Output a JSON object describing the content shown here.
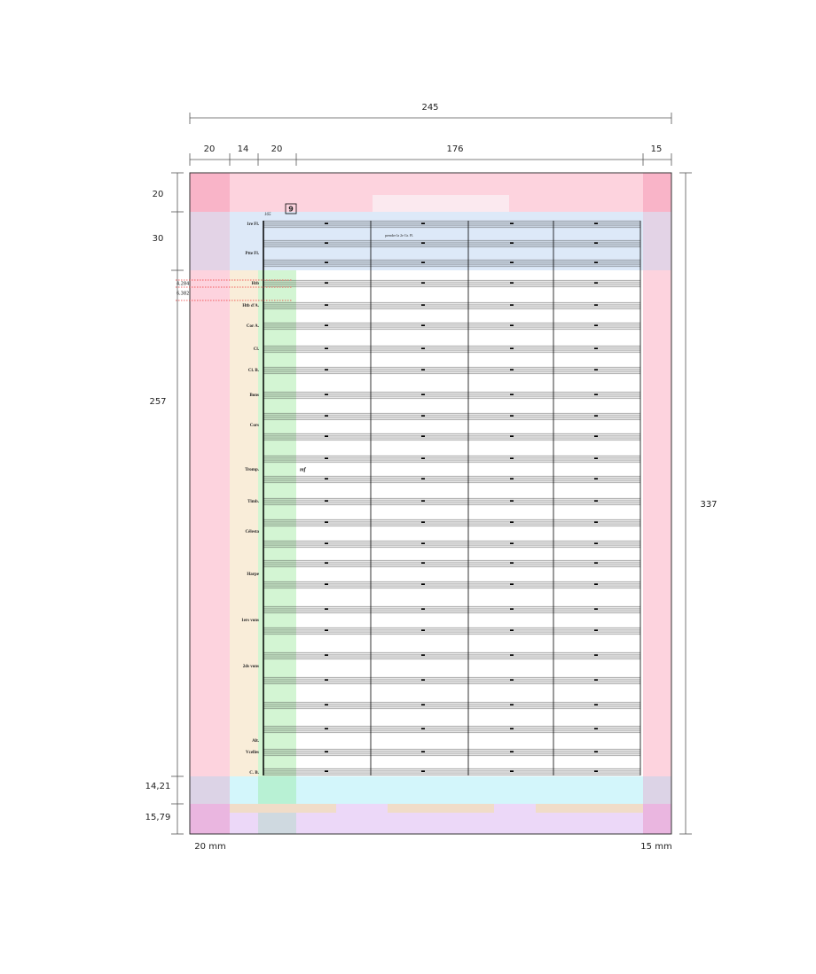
{
  "dimensions": {
    "total_width": "245",
    "columns": [
      "20",
      "14",
      "20",
      "176",
      "15"
    ],
    "rows": [
      "20",
      "30",
      "257",
      "14,21",
      "15,79"
    ],
    "total_height": "337",
    "bottom_margins": [
      "20 mm",
      "15 mm"
    ],
    "offsets": [
      "4,284",
      "6,382"
    ]
  },
  "score": {
    "rehearsal": "9",
    "measure": "165",
    "annotation": "prendre la 2e Gr. Fl.",
    "dynamic": "mf",
    "instruments": [
      "1re Fl.",
      "Ptte Fl.",
      "Htb",
      "Htb d'A.",
      "Cor A.",
      "Cl.",
      "Cl. B.",
      "Bons",
      "Cors",
      "Tromp.",
      "Timb.",
      "Célesta",
      "Harpe",
      "1ers vons",
      "2ds vons",
      "Alt.",
      "Vcelles",
      "C. B."
    ]
  }
}
